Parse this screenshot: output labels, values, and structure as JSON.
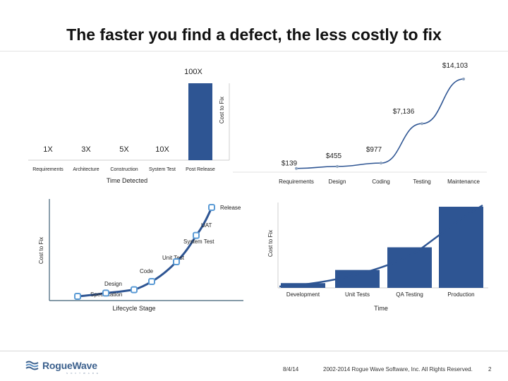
{
  "slide": {
    "title": "The faster you find a defect, the less costly to fix",
    "footer": {
      "date": "8/4/14",
      "copyright": "2002-2014 Rogue Wave Software, Inc. All Rights Reserved.",
      "page_number": "2",
      "logo_text": "RogueWave",
      "logo_sub": "SOFTWARE"
    }
  },
  "chart_data": [
    {
      "type": "bar",
      "categories": [
        "Requirements",
        "Architecture",
        "Construction",
        "System Test",
        "Post Release"
      ],
      "values": [
        1,
        3,
        5,
        10,
        100
      ],
      "data_labels": [
        "1X",
        "3X",
        "5X",
        "10X",
        "100X"
      ],
      "xlabel": "Time Detected",
      "ylabel": "Cost to Fix",
      "colors": {
        "bar": "#2e5593"
      }
    },
    {
      "type": "line",
      "categories": [
        "Requirements",
        "Design",
        "Coding",
        "Testing",
        "Maintenance"
      ],
      "values": [
        139,
        455,
        977,
        7136,
        14103
      ],
      "data_labels": [
        "$139",
        "$455",
        "$977",
        "$7,136",
        "$14,103"
      ],
      "xlabel": "",
      "ylabel": "",
      "colors": {
        "line": "#2e5593"
      }
    },
    {
      "type": "line",
      "points": [
        "Specification",
        "Design",
        "Code",
        "Unit Test",
        "System Test",
        "UAT",
        "Release"
      ],
      "values": [
        1,
        3,
        5,
        10,
        22,
        38,
        55
      ],
      "xlabel": "Lifecycle Stage",
      "ylabel": "Cost to Fix",
      "colors": {
        "line": "#2e5593",
        "axis": "#3e5f74",
        "marker": "#5b9bd5"
      }
    },
    {
      "type": "bar",
      "categories": [
        "Development",
        "Unit Tests",
        "QA Testing",
        "Production"
      ],
      "values": [
        4,
        15,
        34,
        68
      ],
      "xlabel": "Time",
      "ylabel": "Cost to Fix",
      "colors": {
        "bar": "#2e5593",
        "curve": "#2e5593"
      }
    }
  ]
}
